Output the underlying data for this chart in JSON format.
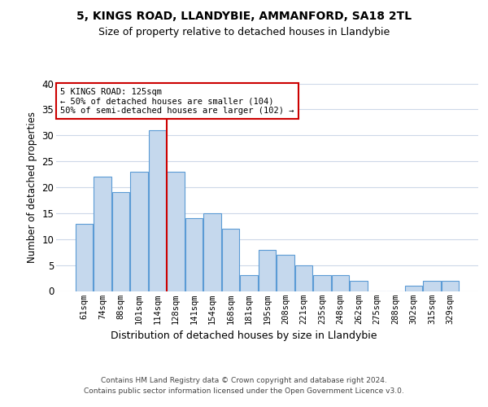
{
  "title1": "5, KINGS ROAD, LLANDYBIE, AMMANFORD, SA18 2TL",
  "title2": "Size of property relative to detached houses in Llandybie",
  "xlabel": "Distribution of detached houses by size in Llandybie",
  "ylabel": "Number of detached properties",
  "footer1": "Contains HM Land Registry data © Crown copyright and database right 2024.",
  "footer2": "Contains public sector information licensed under the Open Government Licence v3.0.",
  "categories": [
    "61sqm",
    "74sqm",
    "88sqm",
    "101sqm",
    "114sqm",
    "128sqm",
    "141sqm",
    "154sqm",
    "168sqm",
    "181sqm",
    "195sqm",
    "208sqm",
    "221sqm",
    "235sqm",
    "248sqm",
    "262sqm",
    "275sqm",
    "288sqm",
    "302sqm",
    "315sqm",
    "329sqm"
  ],
  "values": [
    13,
    22,
    19,
    23,
    31,
    23,
    14,
    15,
    12,
    3,
    8,
    7,
    5,
    3,
    3,
    2,
    0,
    0,
    1,
    2,
    2
  ],
  "bar_color": "#c5d8ed",
  "bar_edge_color": "#5b9bd5",
  "background_color": "#ffffff",
  "grid_color": "#cdd8e8",
  "annotation_box_text": "5 KINGS ROAD: 125sqm\n← 50% of detached houses are smaller (104)\n50% of semi-detached houses are larger (102) →",
  "annotation_box_color": "#ffffff",
  "annotation_box_edge_color": "#cc0000",
  "vline_x": 4.5,
  "vline_color": "#cc0000",
  "ylim": [
    0,
    40
  ],
  "yticks": [
    0,
    5,
    10,
    15,
    20,
    25,
    30,
    35,
    40
  ]
}
